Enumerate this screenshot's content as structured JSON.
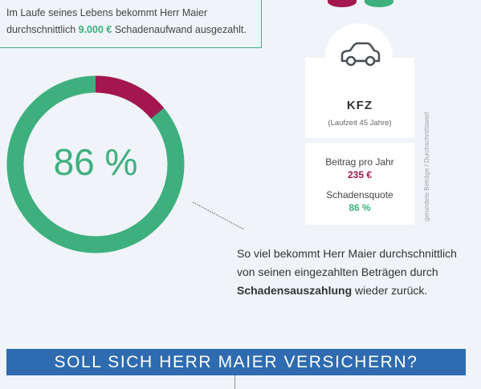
{
  "info": {
    "line1": "Im Laufe seines Lebens bekommt Herr Maier",
    "line2_pre": "durchschnittlich ",
    "line2_amount": "9.000 €",
    "line2_post": " Schadenaufwand ausgezahlt."
  },
  "insurance": {
    "icon": "car-icon",
    "title": "KFZ",
    "subtitle": "(Laufzeit 45 Jahre)",
    "premium_label": "Beitrag pro Jahr",
    "premium_value": "235 €",
    "loss_ratio_label": "Schadensquote",
    "loss_ratio_value": "86 %"
  },
  "vertical_note": "gerundete Beträge / Durchschnittswert",
  "donut": {
    "value_text": "86 %",
    "share": 0.86,
    "color_primary": "#3db07e",
    "color_remainder": "#a4164f"
  },
  "explanation": {
    "line1": "So viel bekommt Herr Maier durchschnittlich",
    "line2": "von seinen eingezahlten Beträgen durch",
    "line3_bold": "Schadensauszahlung",
    "line3_rest": " wieder zurück."
  },
  "banner": {
    "text": "SOLL SICH HERR MAIER VERSICHERN?"
  },
  "colors": {
    "green": "#3db07e",
    "magenta": "#a4164f",
    "blue": "#2f6bb0",
    "background": "#f0f3f7"
  }
}
